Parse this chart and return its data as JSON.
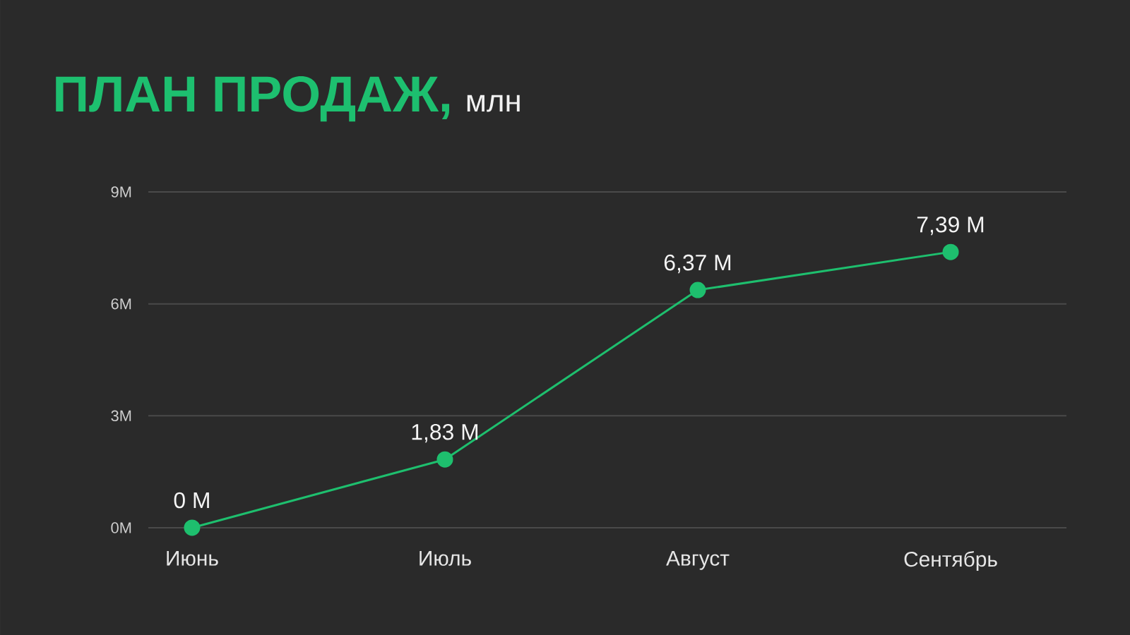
{
  "chart_data": {
    "type": "line",
    "title": "ПЛАН ПРОДАЖ,",
    "subtitle": "млн",
    "categories": [
      "Июнь",
      "Июль",
      "Август",
      "Сентябрь"
    ],
    "values": [
      0,
      1.83,
      6.37,
      7.39
    ],
    "value_labels": [
      "0 M",
      "1,83 M",
      "6,37 M",
      "7,39 M"
    ],
    "color": "#1ebf6e",
    "ylim": [
      0,
      9
    ],
    "yticks": [
      {
        "value": 0,
        "label": "0M"
      },
      {
        "value": 3,
        "label": "3M"
      },
      {
        "value": 6,
        "label": "6M"
      },
      {
        "value": 9,
        "label": "9M"
      }
    ],
    "grid": "y",
    "marker": "circle",
    "line_style": "solid"
  }
}
